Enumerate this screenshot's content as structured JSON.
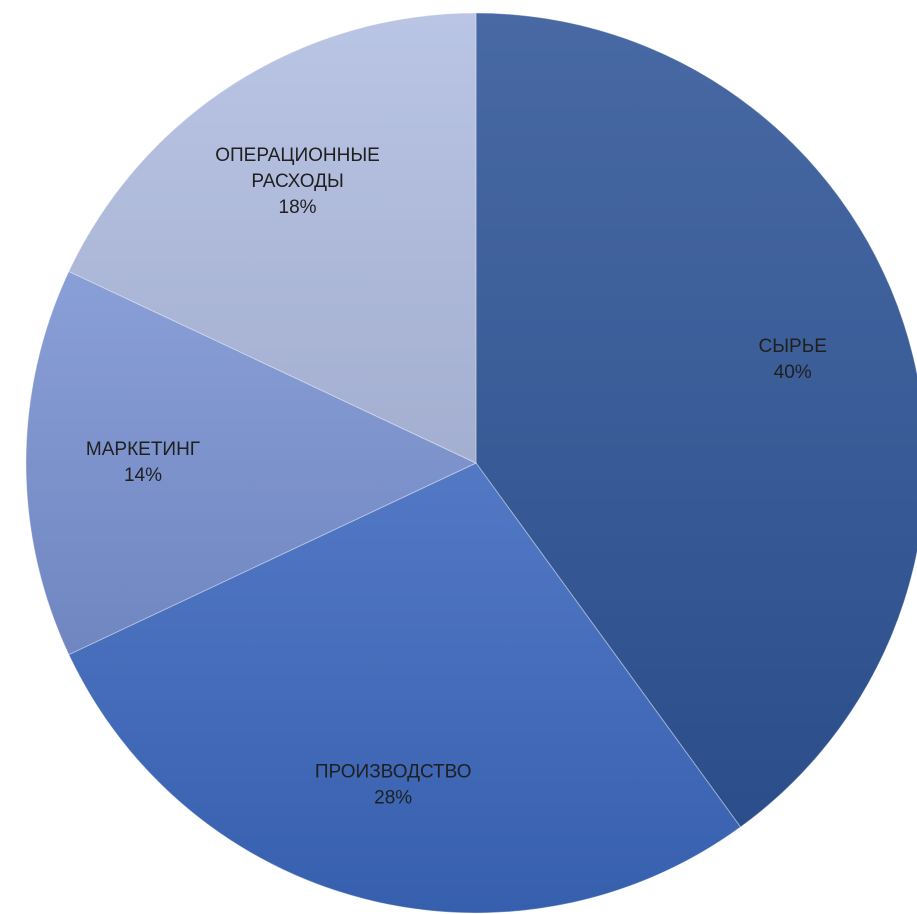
{
  "chart_data": {
    "type": "pie",
    "title": "",
    "start_angle_deg": 0,
    "direction": "clockwise",
    "legend": "none",
    "slices": [
      {
        "name": "СЫРЬЕ",
        "label_lines": [
          "СЫРЬЕ"
        ],
        "value": 40,
        "value_label": "40%",
        "color": "#2f5597"
      },
      {
        "name": "ПРОИЗВОДСТВО",
        "label_lines": [
          "ПРОИЗВОДСТВО"
        ],
        "value": 28,
        "value_label": "28%",
        "color": "#3b67bd"
      },
      {
        "name": "МАРКЕТИНГ",
        "label_lines": [
          "МАРКЕТИНГ"
        ],
        "value": 14,
        "value_label": "14%",
        "color": "#7a92d2"
      },
      {
        "name": "ОПЕРАЦИОННЫЕ РАСХОДЫ",
        "label_lines": [
          "ОПЕРАЦИОННЫЕ",
          "РАСХОДЫ"
        ],
        "value": 18,
        "value_label": "18%",
        "color": "#b1bde2"
      }
    ]
  }
}
